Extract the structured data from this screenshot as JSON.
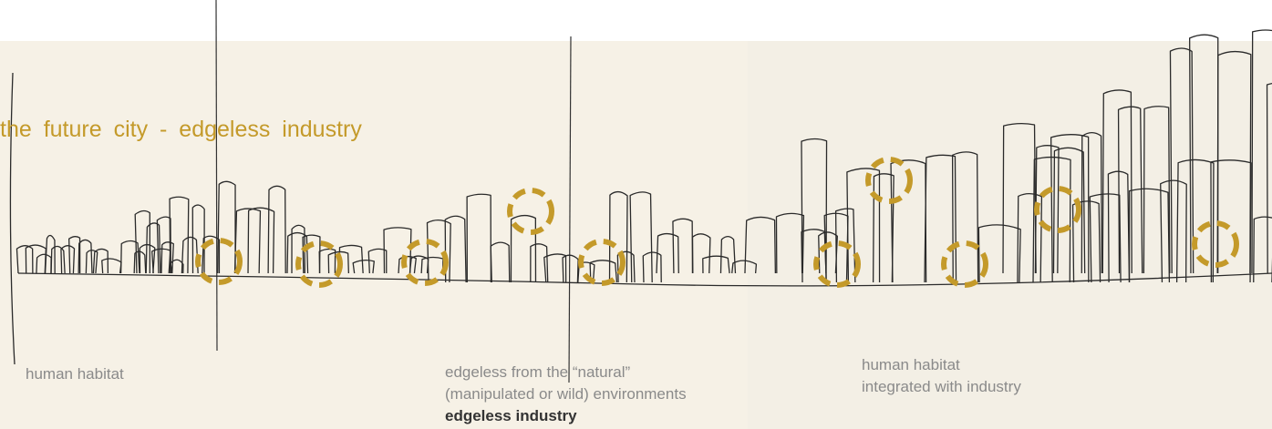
{
  "title": "the future city - edgeless industry",
  "labels": [
    {
      "lines": [
        "human habitat"
      ]
    },
    {
      "lines": [
        "edgeless from the “natural”",
        "(manipulated or wild) environments"
      ],
      "emphasis": "edgeless industry"
    },
    {
      "lines": [
        "human habitat",
        "integrated with industry"
      ]
    }
  ]
}
